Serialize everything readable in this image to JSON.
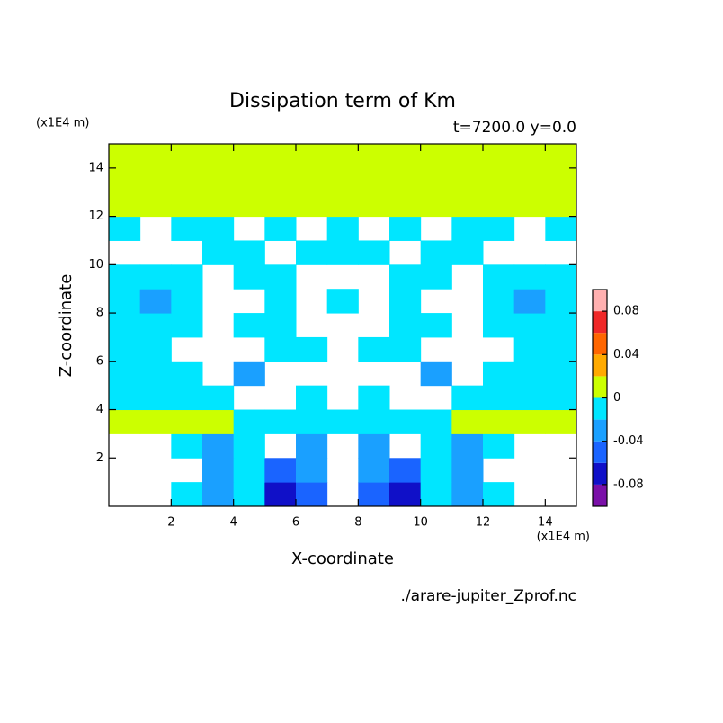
{
  "chart_data": {
    "type": "contour",
    "title": "Dissipation term of Km",
    "subtitle": "t=7200.0 y=0.0",
    "x_label": "X-coordinate",
    "y_label": "Z-coordinate",
    "x_unit": "(x1E4 m)",
    "y_unit": "(x1E4 m)",
    "footer": "./arare-jupiter_Zprof.nc",
    "xlim": [
      0,
      15
    ],
    "xticks": [
      2,
      4,
      6,
      8,
      10,
      12,
      14
    ],
    "ylim": [
      0,
      15
    ],
    "yticks": [
      2,
      4,
      6,
      8,
      10,
      12,
      14
    ],
    "levels": [
      -0.1,
      -0.08,
      -0.06,
      -0.04,
      -0.02,
      0,
      0.02,
      0.04,
      0.06,
      0.08,
      0.1
    ],
    "colors": [
      "#7a10a8",
      "#1010c8",
      "#1a64ff",
      "#1aa0ff",
      "#00e6ff",
      "#ccff00",
      "#ffaa00",
      "#ff6600",
      "#f02828",
      "#ffb0b0"
    ],
    "cbticks": [
      -0.08,
      -0.04,
      0,
      0.04,
      0.08
    ],
    "x": [
      0.5,
      1.5,
      2.5,
      3.5,
      4.5,
      5.5,
      6.5,
      7.5,
      8.5,
      9.5,
      10.5,
      11.5,
      12.5,
      13.5,
      14.5
    ],
    "z": [
      0.5,
      1.5,
      2.5,
      3.5,
      4.5,
      5.5,
      6.5,
      7.5,
      8.5,
      9.5,
      10.5,
      11.5,
      12.5,
      13.5,
      14.5
    ],
    "field": [
      [
        null,
        null,
        -0.01,
        -0.03,
        -0.01,
        -0.07,
        -0.05,
        null,
        -0.05,
        -0.07,
        -0.01,
        -0.03,
        -0.01,
        null,
        null
      ],
      [
        null,
        null,
        null,
        -0.03,
        -0.01,
        -0.05,
        -0.03,
        null,
        -0.03,
        -0.05,
        -0.01,
        -0.03,
        null,
        null,
        null
      ],
      [
        null,
        null,
        -0.01,
        -0.03,
        -0.01,
        null,
        -0.03,
        null,
        -0.03,
        null,
        -0.01,
        -0.03,
        -0.01,
        null,
        null
      ],
      [
        0.01,
        0.01,
        0.01,
        0.01,
        -0.01,
        -0.01,
        -0.01,
        -0.01,
        -0.01,
        -0.01,
        -0.01,
        0.01,
        0.01,
        0.01,
        0.01
      ],
      [
        -0.01,
        -0.01,
        -0.01,
        -0.01,
        null,
        null,
        -0.01,
        null,
        -0.01,
        null,
        null,
        -0.01,
        -0.01,
        -0.01,
        -0.01
      ],
      [
        -0.01,
        -0.01,
        -0.01,
        null,
        -0.03,
        null,
        null,
        null,
        null,
        null,
        -0.03,
        null,
        -0.01,
        -0.01,
        -0.01
      ],
      [
        -0.01,
        -0.01,
        null,
        null,
        null,
        -0.01,
        -0.01,
        null,
        -0.01,
        -0.01,
        null,
        null,
        null,
        -0.01,
        -0.01
      ],
      [
        -0.01,
        -0.01,
        -0.01,
        null,
        -0.01,
        -0.01,
        null,
        null,
        null,
        -0.01,
        -0.01,
        null,
        -0.01,
        -0.01,
        -0.01
      ],
      [
        -0.01,
        -0.03,
        -0.01,
        null,
        null,
        -0.01,
        null,
        -0.01,
        null,
        -0.01,
        null,
        null,
        -0.01,
        -0.03,
        -0.01
      ],
      [
        -0.01,
        -0.01,
        -0.01,
        null,
        -0.01,
        -0.01,
        null,
        null,
        null,
        -0.01,
        -0.01,
        null,
        -0.01,
        -0.01,
        -0.01
      ],
      [
        null,
        null,
        null,
        -0.01,
        -0.01,
        null,
        -0.01,
        -0.01,
        -0.01,
        null,
        -0.01,
        -0.01,
        null,
        null,
        null
      ],
      [
        -0.01,
        null,
        -0.01,
        -0.01,
        null,
        -0.01,
        null,
        -0.01,
        null,
        -0.01,
        null,
        -0.01,
        -0.01,
        null,
        -0.01
      ],
      [
        0.01,
        0.01,
        0.01,
        0.01,
        0.01,
        0.01,
        0.01,
        0.01,
        0.01,
        0.01,
        0.01,
        0.01,
        0.01,
        0.01,
        0.01
      ],
      [
        0.01,
        0.01,
        0.01,
        0.01,
        0.01,
        0.01,
        0.01,
        0.01,
        0.01,
        0.01,
        0.01,
        0.01,
        0.01,
        0.01,
        0.01
      ],
      [
        0.01,
        0.01,
        0.01,
        0.01,
        0.01,
        0.01,
        0.01,
        0.01,
        0.01,
        0.01,
        0.01,
        0.01,
        0.01,
        0.01,
        0.01
      ]
    ]
  }
}
